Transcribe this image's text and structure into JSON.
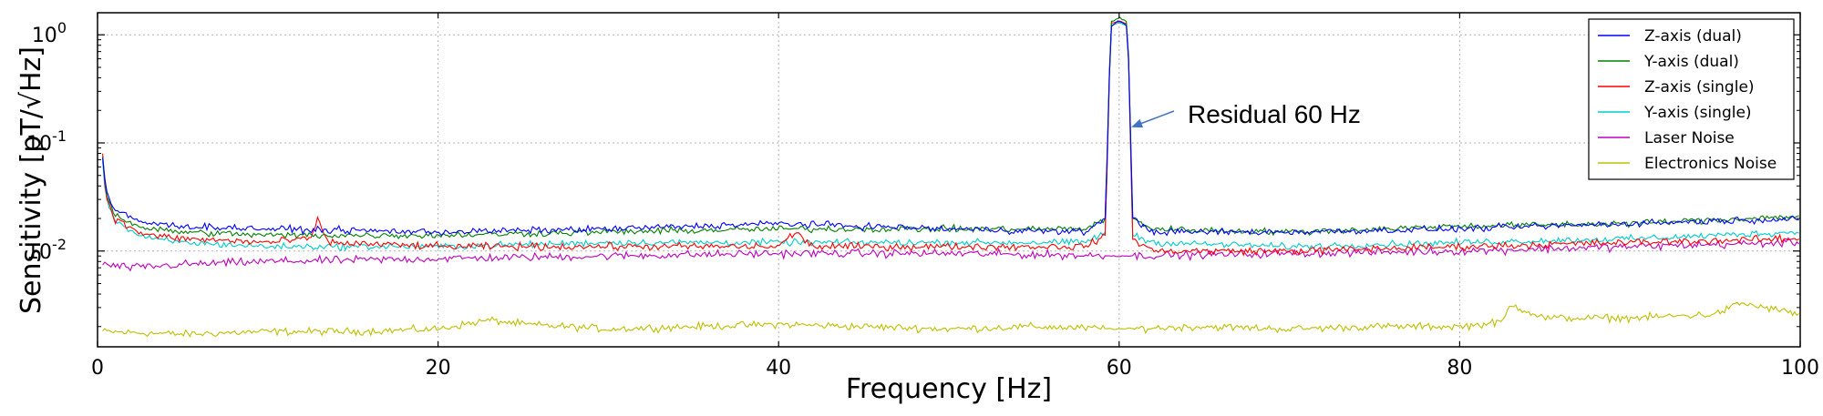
{
  "chart_data": {
    "type": "line",
    "title": "",
    "xlabel": "Frequency [Hz]",
    "ylabel": "Sensitivity [pT/√Hz]",
    "xlim": [
      0,
      100
    ],
    "ylim": [
      0.0013,
      1.6
    ],
    "yscale": "log",
    "grid": true,
    "xticks": [
      0,
      20,
      40,
      60,
      80,
      100
    ],
    "xtick_labels": [
      "0",
      "20",
      "40",
      "60",
      "80",
      "100"
    ],
    "yticks": [
      {
        "value": 1,
        "base": "10",
        "exp": "0"
      },
      {
        "value": 0.1,
        "base": "10",
        "exp": "-1"
      },
      {
        "value": 0.01,
        "base": "10",
        "exp": "-2"
      }
    ],
    "legend_position": "top-right",
    "annotations": [
      {
        "text": "Residual 60 Hz",
        "x": 60.3,
        "y": 0.13
      }
    ],
    "series": [
      {
        "name": "Z-axis (dual)",
        "color": "#0000ff",
        "x": [
          0.3,
          0.5,
          1,
          2,
          3,
          5,
          10,
          20,
          30,
          40,
          50,
          58,
          59.2,
          59.5,
          60,
          60.5,
          60.8,
          62,
          70,
          80,
          90,
          100
        ],
        "values": [
          0.075,
          0.035,
          0.024,
          0.02,
          0.018,
          0.017,
          0.016,
          0.015,
          0.016,
          0.018,
          0.016,
          0.015,
          0.02,
          1.2,
          1.35,
          1.2,
          0.02,
          0.015,
          0.015,
          0.016,
          0.018,
          0.02
        ]
      },
      {
        "name": "Y-axis (dual)",
        "color": "#008000",
        "x": [
          0.3,
          0.5,
          1,
          2,
          3,
          5,
          10,
          20,
          30,
          40,
          50,
          58,
          59.2,
          59.5,
          60,
          60.5,
          60.8,
          62,
          70,
          80,
          90,
          100
        ],
        "values": [
          0.075,
          0.035,
          0.022,
          0.018,
          0.016,
          0.015,
          0.014,
          0.014,
          0.015,
          0.016,
          0.016,
          0.016,
          0.02,
          1.3,
          1.45,
          1.3,
          0.02,
          0.016,
          0.015,
          0.017,
          0.018,
          0.021
        ]
      },
      {
        "name": "Z-axis (single)",
        "color": "#ff0000",
        "x": [
          0.3,
          0.5,
          1,
          2,
          3,
          5,
          10,
          12.5,
          13,
          13.5,
          20,
          30,
          40,
          41,
          42,
          50,
          58,
          59.2,
          59.5,
          60,
          60.5,
          60.8,
          62,
          70,
          80,
          90,
          100
        ],
        "values": [
          0.075,
          0.033,
          0.02,
          0.016,
          0.014,
          0.013,
          0.012,
          0.013,
          0.02,
          0.012,
          0.011,
          0.011,
          0.011,
          0.015,
          0.011,
          0.011,
          0.011,
          0.014,
          1.25,
          1.35,
          1.25,
          0.013,
          0.01,
          0.01,
          0.011,
          0.012,
          0.013
        ]
      },
      {
        "name": "Y-axis (single)",
        "color": "#00cccc",
        "x": [
          0.3,
          0.5,
          1,
          2,
          3,
          5,
          10,
          20,
          30,
          40,
          50,
          58,
          59.2,
          59.5,
          60,
          60.5,
          60.8,
          62,
          70,
          80,
          90,
          100
        ],
        "values": [
          0.07,
          0.03,
          0.02,
          0.015,
          0.013,
          0.012,
          0.011,
          0.011,
          0.012,
          0.012,
          0.012,
          0.012,
          0.015,
          1.2,
          1.3,
          1.2,
          0.014,
          0.012,
          0.011,
          0.012,
          0.013,
          0.015
        ]
      },
      {
        "name": "Laser Noise",
        "color": "#bf00bf",
        "x": [
          0.3,
          2,
          5,
          10,
          20,
          30,
          40,
          50,
          60,
          70,
          80,
          90,
          100
        ],
        "values": [
          0.0075,
          0.007,
          0.0075,
          0.008,
          0.0085,
          0.009,
          0.0095,
          0.0095,
          0.009,
          0.0095,
          0.01,
          0.011,
          0.012
        ]
      },
      {
        "name": "Electronics Noise",
        "color": "#bfbf00",
        "x": [
          0.3,
          5,
          10,
          15,
          20,
          23,
          25,
          30,
          35,
          40,
          45,
          50,
          55,
          60,
          65,
          70,
          75,
          80,
          82.5,
          83,
          85,
          90,
          95,
          96.5,
          100
        ],
        "values": [
          0.0018,
          0.0017,
          0.0018,
          0.0018,
          0.0019,
          0.0023,
          0.0021,
          0.0019,
          0.002,
          0.0021,
          0.002,
          0.0019,
          0.002,
          0.0019,
          0.002,
          0.0019,
          0.002,
          0.002,
          0.0022,
          0.0032,
          0.0024,
          0.0024,
          0.0026,
          0.0033,
          0.0026
        ]
      }
    ]
  }
}
